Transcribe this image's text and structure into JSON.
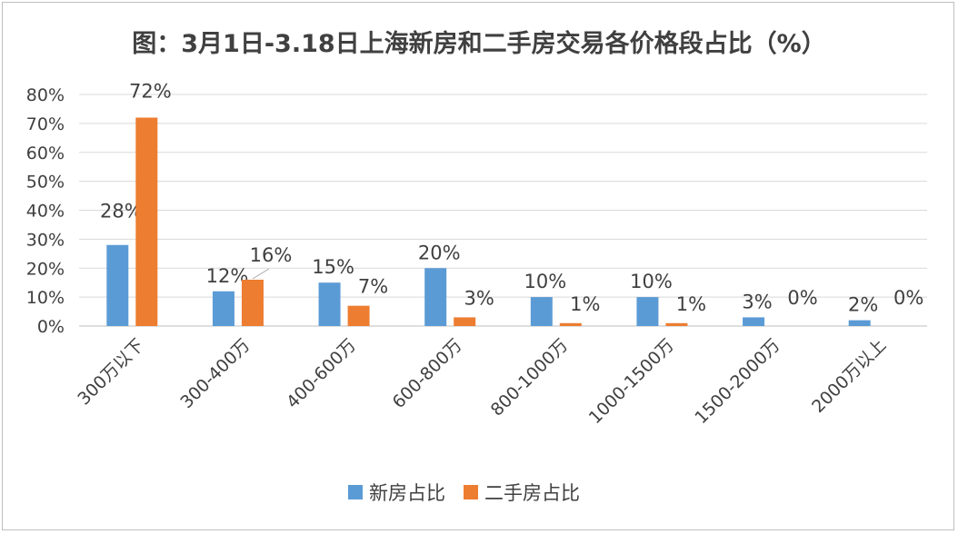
{
  "chart_data": {
    "type": "bar",
    "title": "图：3月1日-3.18日上海新房和二手房交易各价格段占比（%）",
    "categories": [
      "300万以下",
      "300-400万",
      "400-600万",
      "600-800万",
      "800-1000万",
      "1000-1500万",
      "1500-2000万",
      "2000万以上"
    ],
    "series": [
      {
        "name": "新房占比",
        "values": [
          28,
          12,
          15,
          20,
          10,
          10,
          3,
          2
        ],
        "labels": [
          "28%",
          "12%",
          "15%",
          "20%",
          "10%",
          "10%",
          "3%",
          "2%"
        ],
        "color": "#5b9bd5"
      },
      {
        "name": "二手房占比",
        "values": [
          72,
          16,
          7,
          3,
          1,
          1,
          0,
          0
        ],
        "labels": [
          "72%",
          "16%",
          "7%",
          "3%",
          "1%",
          "1%",
          "0%",
          "0%"
        ],
        "color": "#ed7d31"
      }
    ],
    "yticks": [
      "0%",
      "10%",
      "20%",
      "30%",
      "40%",
      "50%",
      "60%",
      "70%",
      "80%"
    ],
    "ylim": [
      0,
      80
    ],
    "xlabel": "",
    "ylabel": "",
    "grid": true,
    "legend": "bottom"
  }
}
